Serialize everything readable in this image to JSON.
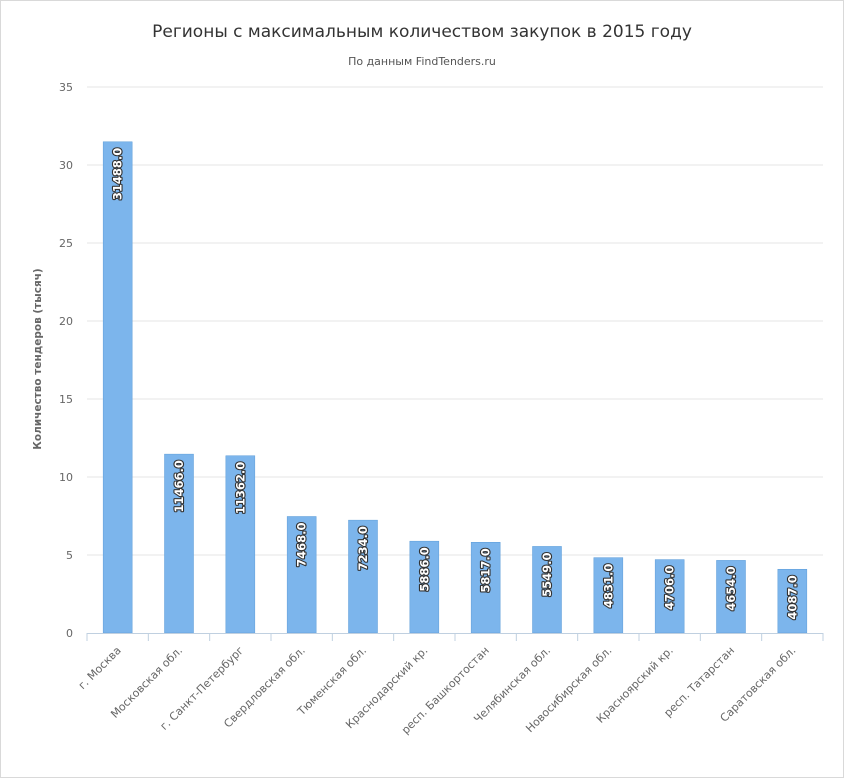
{
  "chart_data": {
    "type": "bar",
    "title": "Регионы с максимальным количеством закупок в 2015 году",
    "subtitle": "По данным FindTenders.ru",
    "xlabel": "",
    "ylabel": "Количество тендеров (тысяч)",
    "ylim": [
      0,
      35
    ],
    "yticks": [
      "0",
      "5",
      "10",
      "15",
      "20",
      "25",
      "30",
      "35"
    ],
    "grid": true,
    "legend": "none",
    "colors": {
      "bar": "#7cb5ec",
      "bar_edge": "#5a9bd8",
      "grid": "#e6e6e6",
      "label_text": "#ffffff",
      "axis_text": "#666666",
      "title": "#333333"
    },
    "categories": [
      "г. Москва",
      "Московская обл.",
      "г. Санкт-Петербург",
      "Свердловская обл.",
      "Тюменская обл.",
      "Краснодарский кр.",
      "респ. Башкортостан",
      "Челябинская обл.",
      "Новосибирская обл.",
      "Красноярский кр.",
      "респ. Татарстан",
      "Саратовская обл."
    ],
    "values": [
      31.488,
      11.466,
      11.362,
      7.468,
      7.234,
      5.886,
      5.817,
      5.549,
      4.831,
      4.706,
      4.654,
      4.087
    ],
    "data_labels": [
      "31488.0",
      "11466.0",
      "11362.0",
      "7468.0",
      "7234.0",
      "5886.0",
      "5817.0",
      "5549.0",
      "4831.0",
      "4706.0",
      "4654.0",
      "4087.0"
    ]
  }
}
